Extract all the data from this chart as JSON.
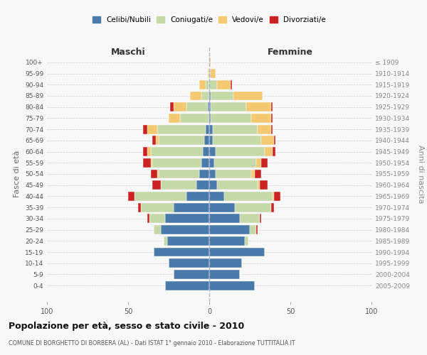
{
  "age_groups": [
    "0-4",
    "5-9",
    "10-14",
    "15-19",
    "20-24",
    "25-29",
    "30-34",
    "35-39",
    "40-44",
    "45-49",
    "50-54",
    "55-59",
    "60-64",
    "65-69",
    "70-74",
    "75-79",
    "80-84",
    "85-89",
    "90-94",
    "95-99",
    "100+"
  ],
  "birth_years": [
    "2005-2009",
    "2000-2004",
    "1995-1999",
    "1990-1994",
    "1985-1989",
    "1980-1984",
    "1975-1979",
    "1970-1974",
    "1965-1969",
    "1960-1964",
    "1955-1959",
    "1950-1954",
    "1945-1949",
    "1940-1944",
    "1935-1939",
    "1930-1934",
    "1925-1929",
    "1920-1924",
    "1915-1919",
    "1910-1914",
    "≤ 1909"
  ],
  "males": {
    "celibi": [
      27,
      22,
      25,
      34,
      26,
      30,
      27,
      22,
      14,
      8,
      6,
      5,
      4,
      3,
      2,
      0,
      1,
      0,
      0,
      0,
      0
    ],
    "coniugati": [
      0,
      0,
      0,
      0,
      2,
      4,
      10,
      20,
      32,
      22,
      25,
      30,
      32,
      28,
      30,
      18,
      13,
      5,
      2,
      0,
      0
    ],
    "vedovi": [
      0,
      0,
      0,
      0,
      0,
      0,
      0,
      0,
      0,
      0,
      1,
      1,
      2,
      2,
      6,
      7,
      8,
      7,
      4,
      1,
      0
    ],
    "divorziati": [
      0,
      0,
      0,
      0,
      0,
      0,
      1,
      2,
      4,
      5,
      4,
      5,
      3,
      2,
      3,
      0,
      2,
      0,
      0,
      0,
      0
    ]
  },
  "females": {
    "nubili": [
      28,
      19,
      20,
      34,
      22,
      25,
      19,
      16,
      9,
      5,
      4,
      3,
      4,
      2,
      2,
      1,
      1,
      1,
      0,
      0,
      0
    ],
    "coniugate": [
      0,
      0,
      0,
      0,
      2,
      4,
      12,
      22,
      30,
      25,
      22,
      26,
      30,
      30,
      28,
      25,
      22,
      14,
      5,
      1,
      0
    ],
    "vedove": [
      0,
      0,
      0,
      0,
      0,
      0,
      0,
      0,
      1,
      1,
      2,
      3,
      5,
      8,
      8,
      12,
      15,
      18,
      8,
      3,
      1
    ],
    "divorziate": [
      0,
      0,
      0,
      0,
      0,
      1,
      1,
      2,
      4,
      5,
      4,
      4,
      2,
      1,
      1,
      1,
      1,
      0,
      1,
      0,
      0
    ]
  },
  "colors": {
    "celibi": "#4a7aaa",
    "coniugati": "#c5d9a8",
    "vedovi": "#f5c872",
    "divorziati": "#cc2222"
  },
  "xlim": 100,
  "title": "Popolazione per età, sesso e stato civile - 2010",
  "subtitle": "COMUNE DI BORGHETTO DI BORBERA (AL) - Dati ISTAT 1° gennaio 2010 - Elaborazione TUTTITALIA.IT",
  "ylabel_left": "Fasce di età",
  "ylabel_right": "Anni di nascita",
  "xlabel_left": "Maschi",
  "xlabel_right": "Femmine",
  "bg_color": "#f8f8f8",
  "grid_color": "#cccccc"
}
